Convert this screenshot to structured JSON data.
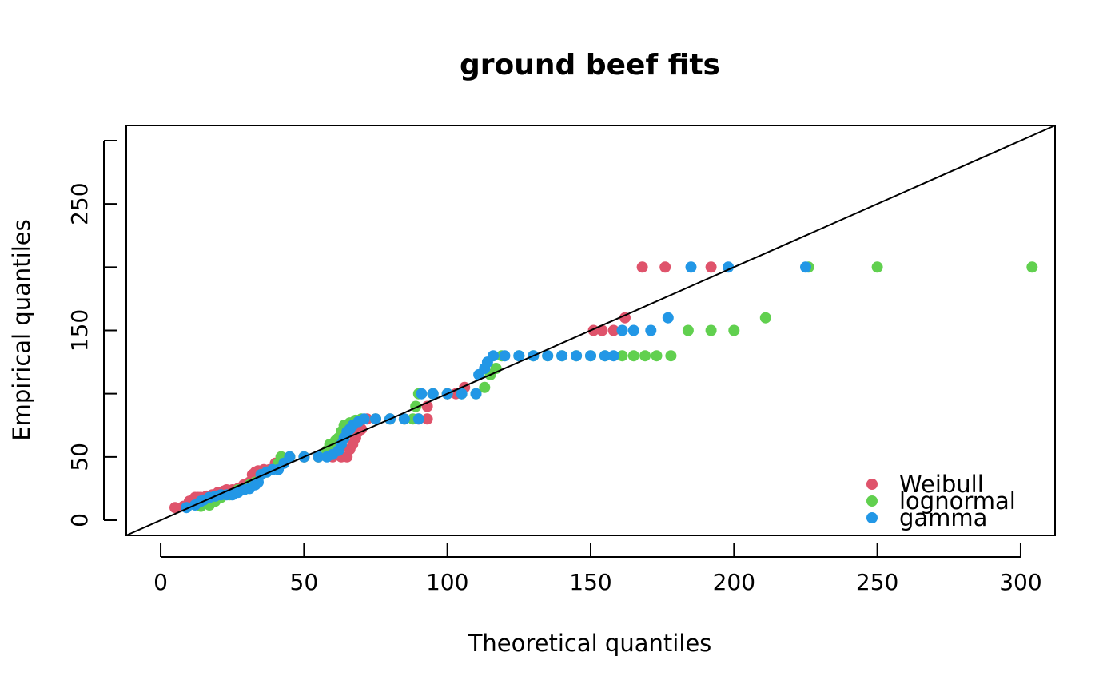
{
  "chart_data": {
    "type": "scatter",
    "title": "ground beef fits",
    "xlabel": "Theoretical quantiles",
    "ylabel": "Empirical quantiles",
    "xlim": [
      -12,
      312
    ],
    "ylim": [
      -12,
      312
    ],
    "x_ticks": [
      0,
      50,
      100,
      150,
      200,
      250,
      300
    ],
    "y_ticks": [
      0,
      50,
      100,
      150,
      200,
      250,
      300
    ],
    "x_tick_labels": [
      "0",
      "50",
      "100",
      "150",
      "200",
      "250",
      "300"
    ],
    "y_tick_labels": [
      "0",
      "50",
      "",
      "150",
      "",
      "250",
      ""
    ],
    "reference_line": {
      "slope": 1,
      "intercept": 0
    },
    "legend_position": "bottom-right",
    "grid": false,
    "series": [
      {
        "name": "Weibull",
        "color": "#DF536B",
        "points": [
          [
            5,
            10
          ],
          [
            8,
            11
          ],
          [
            10,
            15
          ],
          [
            11,
            16
          ],
          [
            12,
            18
          ],
          [
            13,
            18
          ],
          [
            14,
            18
          ],
          [
            16,
            19
          ],
          [
            18,
            20
          ],
          [
            20,
            22
          ],
          [
            21,
            22
          ],
          [
            22,
            23
          ],
          [
            23,
            24
          ],
          [
            25,
            24
          ],
          [
            27,
            25
          ],
          [
            29,
            28
          ],
          [
            31,
            30
          ],
          [
            32,
            36
          ],
          [
            33,
            38
          ],
          [
            34,
            39
          ],
          [
            36,
            40
          ],
          [
            38,
            40
          ],
          [
            40,
            45
          ],
          [
            42,
            50
          ],
          [
            45,
            50
          ],
          [
            50,
            50
          ],
          [
            55,
            50
          ],
          [
            60,
            50
          ],
          [
            63,
            50
          ],
          [
            65,
            50
          ],
          [
            66,
            56
          ],
          [
            67,
            60
          ],
          [
            68,
            65
          ],
          [
            69,
            70
          ],
          [
            70,
            72
          ],
          [
            72,
            80
          ],
          [
            75,
            80
          ],
          [
            80,
            80
          ],
          [
            85,
            80
          ],
          [
            90,
            80
          ],
          [
            93,
            80
          ],
          [
            93,
            90
          ],
          [
            95,
            100
          ],
          [
            100,
            100
          ],
          [
            103,
            100
          ],
          [
            106,
            105
          ],
          [
            151,
            150
          ],
          [
            154,
            150
          ],
          [
            158,
            150
          ],
          [
            162,
            160
          ],
          [
            168,
            200
          ],
          [
            176,
            200
          ],
          [
            192,
            200
          ]
        ]
      },
      {
        "name": "lognormal",
        "color": "#61D04F",
        "points": [
          [
            14,
            11
          ],
          [
            17,
            12
          ],
          [
            19,
            15
          ],
          [
            21,
            18
          ],
          [
            24,
            20
          ],
          [
            26,
            22
          ],
          [
            27,
            24
          ],
          [
            29,
            25
          ],
          [
            30,
            25
          ],
          [
            31,
            28
          ],
          [
            33,
            30
          ],
          [
            35,
            36
          ],
          [
            37,
            38
          ],
          [
            39,
            40
          ],
          [
            41,
            45
          ],
          [
            42,
            50
          ],
          [
            45,
            50
          ],
          [
            50,
            50
          ],
          [
            55,
            50
          ],
          [
            58,
            55
          ],
          [
            59,
            60
          ],
          [
            61,
            63
          ],
          [
            62,
            65
          ],
          [
            63,
            70
          ],
          [
            64,
            75
          ],
          [
            66,
            77
          ],
          [
            68,
            79
          ],
          [
            70,
            80
          ],
          [
            75,
            80
          ],
          [
            80,
            80
          ],
          [
            85,
            80
          ],
          [
            88,
            80
          ],
          [
            89,
            90
          ],
          [
            90,
            100
          ],
          [
            95,
            100
          ],
          [
            100,
            100
          ],
          [
            105,
            100
          ],
          [
            110,
            100
          ],
          [
            113,
            105
          ],
          [
            115,
            115
          ],
          [
            117,
            120
          ],
          [
            119,
            130
          ],
          [
            125,
            130
          ],
          [
            130,
            130
          ],
          [
            135,
            130
          ],
          [
            140,
            130
          ],
          [
            145,
            130
          ],
          [
            150,
            130
          ],
          [
            155,
            130
          ],
          [
            161,
            130
          ],
          [
            165,
            130
          ],
          [
            169,
            130
          ],
          [
            173,
            130
          ],
          [
            178,
            130
          ],
          [
            184,
            150
          ],
          [
            192,
            150
          ],
          [
            200,
            150
          ],
          [
            211,
            160
          ],
          [
            226,
            200
          ],
          [
            250,
            200
          ],
          [
            304,
            200
          ]
        ]
      },
      {
        "name": "gamma",
        "color": "#2297E6",
        "points": [
          [
            9,
            10
          ],
          [
            12,
            12
          ],
          [
            14,
            15
          ],
          [
            15,
            16
          ],
          [
            17,
            18
          ],
          [
            19,
            19
          ],
          [
            21,
            20
          ],
          [
            23,
            20
          ],
          [
            25,
            20
          ],
          [
            27,
            22
          ],
          [
            29,
            24
          ],
          [
            31,
            25
          ],
          [
            33,
            28
          ],
          [
            34,
            30
          ],
          [
            35,
            36
          ],
          [
            37,
            38
          ],
          [
            39,
            40
          ],
          [
            41,
            40
          ],
          [
            43,
            45
          ],
          [
            45,
            50
          ],
          [
            50,
            50
          ],
          [
            55,
            50
          ],
          [
            58,
            50
          ],
          [
            60,
            52
          ],
          [
            62,
            55
          ],
          [
            63,
            60
          ],
          [
            64,
            65
          ],
          [
            65,
            70
          ],
          [
            66,
            72
          ],
          [
            67,
            75
          ],
          [
            69,
            78
          ],
          [
            71,
            80
          ],
          [
            75,
            80
          ],
          [
            80,
            80
          ],
          [
            85,
            80
          ],
          [
            90,
            80
          ],
          [
            91,
            100
          ],
          [
            95,
            100
          ],
          [
            100,
            100
          ],
          [
            105,
            100
          ],
          [
            110,
            100
          ],
          [
            111,
            115
          ],
          [
            113,
            120
          ],
          [
            114,
            125
          ],
          [
            116,
            130
          ],
          [
            120,
            130
          ],
          [
            125,
            130
          ],
          [
            130,
            130
          ],
          [
            135,
            130
          ],
          [
            140,
            130
          ],
          [
            145,
            130
          ],
          [
            150,
            130
          ],
          [
            155,
            130
          ],
          [
            158,
            130
          ],
          [
            161,
            150
          ],
          [
            165,
            150
          ],
          [
            171,
            150
          ],
          [
            177,
            160
          ],
          [
            185,
            200
          ],
          [
            198,
            200
          ],
          [
            225,
            200
          ]
        ]
      }
    ]
  }
}
